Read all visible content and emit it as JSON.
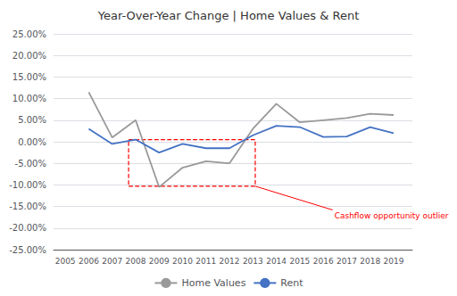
{
  "chart_data": {
    "type": "line",
    "title": "Year-Over-Year Change | Home Values & Rent",
    "x": [
      2005,
      2006,
      2007,
      2008,
      2009,
      2010,
      2011,
      2012,
      2013,
      2014,
      2015,
      2016,
      2017,
      2018,
      2019
    ],
    "xlim": [
      2004.5,
      2019.8
    ],
    "xticks": [
      2005,
      2006,
      2007,
      2008,
      2009,
      2010,
      2011,
      2012,
      2013,
      2014,
      2015,
      2016,
      2017,
      2018,
      2019
    ],
    "ylim": [
      -0.25,
      0.25
    ],
    "yticks": [
      {
        "value": -0.25,
        "label": "-25.00%"
      },
      {
        "value": -0.2,
        "label": "-20.00%"
      },
      {
        "value": -0.15,
        "label": "-15.00%"
      },
      {
        "value": -0.1,
        "label": "-10.00%"
      },
      {
        "value": -0.05,
        "label": "-5.00%"
      },
      {
        "value": 0.0,
        "label": "0.00%"
      },
      {
        "value": 0.05,
        "label": "5.00%"
      },
      {
        "value": 0.1,
        "label": "10.00%"
      },
      {
        "value": 0.15,
        "label": "15.00%"
      },
      {
        "value": 0.2,
        "label": "20.00%"
      },
      {
        "value": 0.25,
        "label": "25.00%"
      }
    ],
    "grid": true,
    "legend": "bottom",
    "series": [
      {
        "name": "Home Values",
        "color": "#999999",
        "values": [
          null,
          0.115,
          0.01,
          0.05,
          -0.105,
          -0.06,
          -0.045,
          -0.05,
          0.03,
          0.088,
          0.045,
          0.05,
          0.055,
          0.065,
          0.062
        ]
      },
      {
        "name": "Rent",
        "color": "#4472c4",
        "values": [
          null,
          0.03,
          -0.005,
          0.005,
          -0.025,
          -0.005,
          -0.015,
          -0.015,
          0.015,
          0.037,
          0.034,
          0.011,
          0.012,
          0.034,
          0.02
        ]
      }
    ],
    "annotations": [
      {
        "text": "Cashflow opportunity outlier",
        "color": "#ff0000",
        "x": 2016.4,
        "y": -0.158,
        "arrow_from": [
          2013.1,
          -0.103
        ],
        "box": {
          "x0": 2007.7,
          "y0": -0.103,
          "width": 5.4,
          "height": 0.108
        }
      }
    ]
  }
}
